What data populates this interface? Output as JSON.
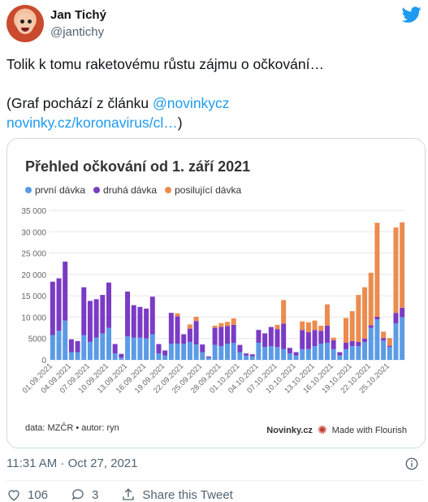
{
  "author": {
    "name": "Jan Tichý",
    "handle": "@jantichy"
  },
  "tweet": {
    "line1": "Tolik k tomu raketovému růstu zájmu o očkování…",
    "line3_prefix": "(Graf pochází z článku ",
    "mention": "@novinkycz",
    "link": "novinky.cz/koronavirus/cl…",
    "line4_suffix": ")"
  },
  "card": {
    "footer_left": "data: MZČR • autor: ryn",
    "footer_brand": "Novinky.cz",
    "footer_flourish": "Made with Flourish"
  },
  "chart_data": {
    "type": "bar",
    "stacked": true,
    "title": "Přehled očkování od 1. září 2021",
    "ylim": [
      0,
      35000
    ],
    "yticks": [
      "0",
      "5000",
      "10 000",
      "15 000",
      "20 000",
      "25 000",
      "30 000",
      "35 000"
    ],
    "xticklabels": [
      "01.09.2021",
      "04.09.2021",
      "07.09.2021",
      "10.09.2021",
      "13.09.2021",
      "16.09.2021",
      "19.09.2021",
      "22.09.2021",
      "25.09.2021",
      "28.09.2021",
      "01.10.2021",
      "04.10.2021",
      "07.10.2021",
      "10.10.2021",
      "13.10.2021",
      "16.10.2021",
      "19.10.2021",
      "22.10.2021",
      "25.10.2021"
    ],
    "colors": {
      "prvni": "#5b9be6",
      "druha": "#7a3bc5",
      "posilujici": "#eb8c4e"
    },
    "series": [
      {
        "name": "první dávka",
        "values": [
          5800,
          6800,
          9200,
          1800,
          1800,
          5800,
          4200,
          5200,
          6200,
          7500,
          1500,
          500,
          5500,
          5200,
          5200,
          5000,
          6000,
          1500,
          1000,
          3800,
          3800,
          3800,
          4200,
          3600,
          1800,
          500,
          3500,
          3200,
          3800,
          4000,
          1800,
          1000,
          800,
          4000,
          3000,
          3200,
          3000,
          2500,
          1500,
          1000,
          2500,
          2500,
          3200,
          3800,
          4000,
          2500,
          1000,
          2500,
          3200,
          3200,
          4200,
          7500,
          9500,
          4500,
          3000,
          8500,
          10000
        ]
      },
      {
        "name": "druhá dávka",
        "values": [
          12500,
          12300,
          13800,
          3000,
          2600,
          11200,
          9600,
          9000,
          9000,
          10600,
          2200,
          900,
          10500,
          7600,
          7200,
          7000,
          8800,
          2200,
          1200,
          7200,
          6400,
          2200,
          3100,
          5500,
          1800,
          300,
          4000,
          4500,
          4100,
          4200,
          1700,
          500,
          500,
          3000,
          3200,
          4500,
          4200,
          6000,
          1300,
          800,
          4500,
          4000,
          3800,
          3000,
          4000,
          2100,
          800,
          1500,
          1200,
          1000,
          800,
          600,
          600,
          600,
          300,
          2500,
          2200
        ]
      },
      {
        "name": "posilující dávka",
        "values": [
          0,
          0,
          0,
          0,
          0,
          0,
          0,
          0,
          0,
          0,
          0,
          0,
          0,
          0,
          0,
          0,
          0,
          0,
          0,
          0,
          700,
          0,
          1000,
          1000,
          0,
          0,
          500,
          900,
          1000,
          1500,
          0,
          0,
          0,
          0,
          0,
          0,
          1000,
          5500,
          0,
          0,
          2000,
          2300,
          2200,
          1200,
          5000,
          600,
          0,
          5800,
          7000,
          11000,
          12000,
          12300,
          22000,
          1500,
          1800,
          20000,
          20000
        ]
      }
    ]
  }
}
